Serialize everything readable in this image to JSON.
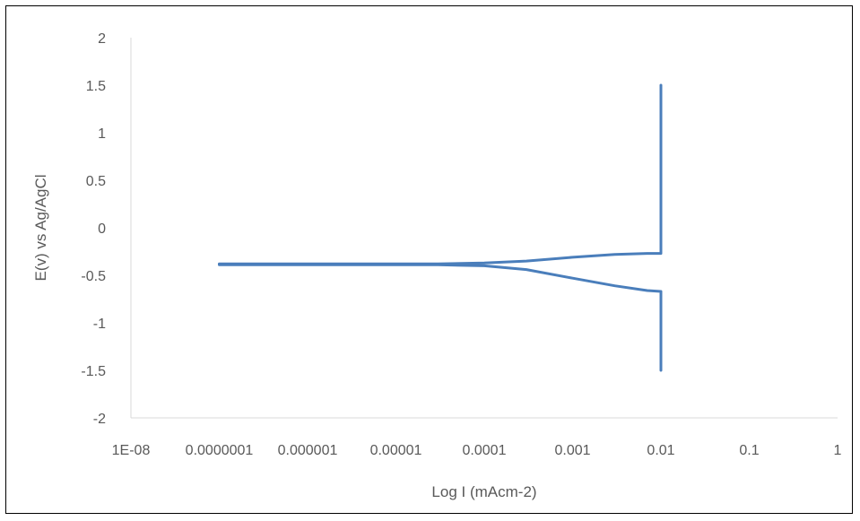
{
  "chart_data": {
    "type": "line",
    "title": "",
    "xlabel": "Log I (mAcm-2)",
    "ylabel": "E(v) vs Ag/AgCl",
    "x_scale": "log",
    "xlim": [
      1e-08,
      1
    ],
    "ylim": [
      -2,
      2
    ],
    "x_tick_labels": [
      "1E-08",
      "0.0000001",
      "0.000001",
      "0.00001",
      "0.0001",
      "0.001",
      "0.01",
      "0.1",
      "1"
    ],
    "y_tick_labels": [
      "2",
      "1.5",
      "1",
      "0.5",
      "0",
      "-0.5",
      "-1",
      "-1.5",
      "-2"
    ],
    "grid": false,
    "legend": "none",
    "series": [
      {
        "color": "#4A7EBB",
        "x": [
          0.01,
          0.01,
          0.007,
          0.003,
          0.001,
          0.0003,
          0.0001,
          3e-05,
          1e-05,
          1e-06,
          1e-07,
          1e-07,
          1e-06,
          1e-05,
          3e-05,
          0.0001,
          0.0003,
          0.001,
          0.003,
          0.007,
          0.01,
          0.01
        ],
        "y": [
          -1.5,
          -0.67,
          -0.66,
          -0.61,
          -0.53,
          -0.44,
          -0.4,
          -0.39,
          -0.39,
          -0.39,
          -0.39,
          -0.38,
          -0.38,
          -0.38,
          -0.38,
          -0.37,
          -0.35,
          -0.31,
          -0.28,
          -0.27,
          -0.27,
          1.5
        ]
      }
    ]
  }
}
